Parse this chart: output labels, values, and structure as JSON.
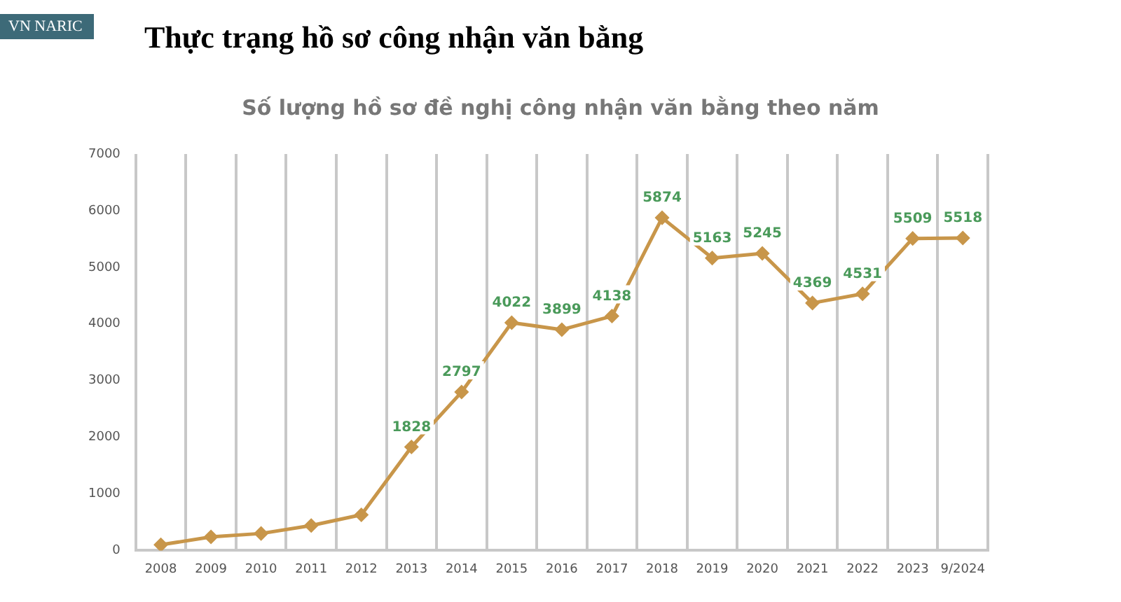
{
  "chart_data": {
    "type": "line",
    "title": "Thực trạng hồ sơ công nhận văn bằng",
    "subtitle": "Số lượng hồ sơ đề nghị công nhận văn bằng theo năm",
    "annotations": [
      "VN NARIC"
    ],
    "categories": [
      "2008",
      "2009",
      "2010",
      "2011",
      "2012",
      "2013",
      "2014",
      "2015",
      "2016",
      "2017",
      "2018",
      "2019",
      "2020",
      "2021",
      "2022",
      "2023",
      "9/2024"
    ],
    "series": [
      {
        "color": "#c8964a",
        "values": [
          100,
          240,
          300,
          440,
          630,
          1828,
          2797,
          4022,
          3899,
          4138,
          5874,
          5163,
          5245,
          4369,
          4531,
          5509,
          5518
        ],
        "value_labels": [
          null,
          null,
          null,
          null,
          null,
          "1828",
          "2797",
          "4022",
          "3899",
          "4138",
          "5874",
          "5163",
          "5245",
          "4369",
          "4531",
          "5509",
          "5518"
        ]
      }
    ],
    "ylim": [
      0,
      7000
    ],
    "yticks": [
      0,
      1000,
      2000,
      3000,
      4000,
      5000,
      6000,
      7000
    ],
    "grid": "x",
    "legend": false,
    "marker": "diamond",
    "line_style": "solid"
  }
}
